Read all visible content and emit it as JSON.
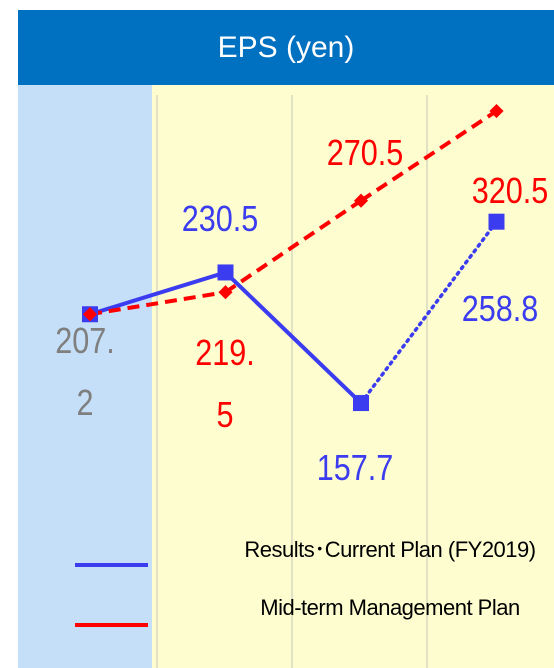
{
  "chart_data": {
    "type": "line",
    "title": "EPS (yen)",
    "categories": [
      null,
      null,
      null,
      null
    ],
    "series": [
      {
        "name": "Results･Current Plan (FY2019)",
        "color": "#3b3bf0",
        "values": [
          207.2,
          230.5,
          157.7,
          258.8
        ],
        "segment_styles": [
          "solid",
          "solid",
          "dotted"
        ],
        "marker": "square"
      },
      {
        "name": "Mid-term Management Plan",
        "color": "#ff0000",
        "values": [
          207.2,
          219.5,
          270.5,
          320.5
        ],
        "segment_styles": [
          "dashed",
          "dashed",
          "dashed"
        ],
        "marker": "diamond"
      }
    ],
    "ylim": [
      10,
      335
    ],
    "grid": true
  }
}
